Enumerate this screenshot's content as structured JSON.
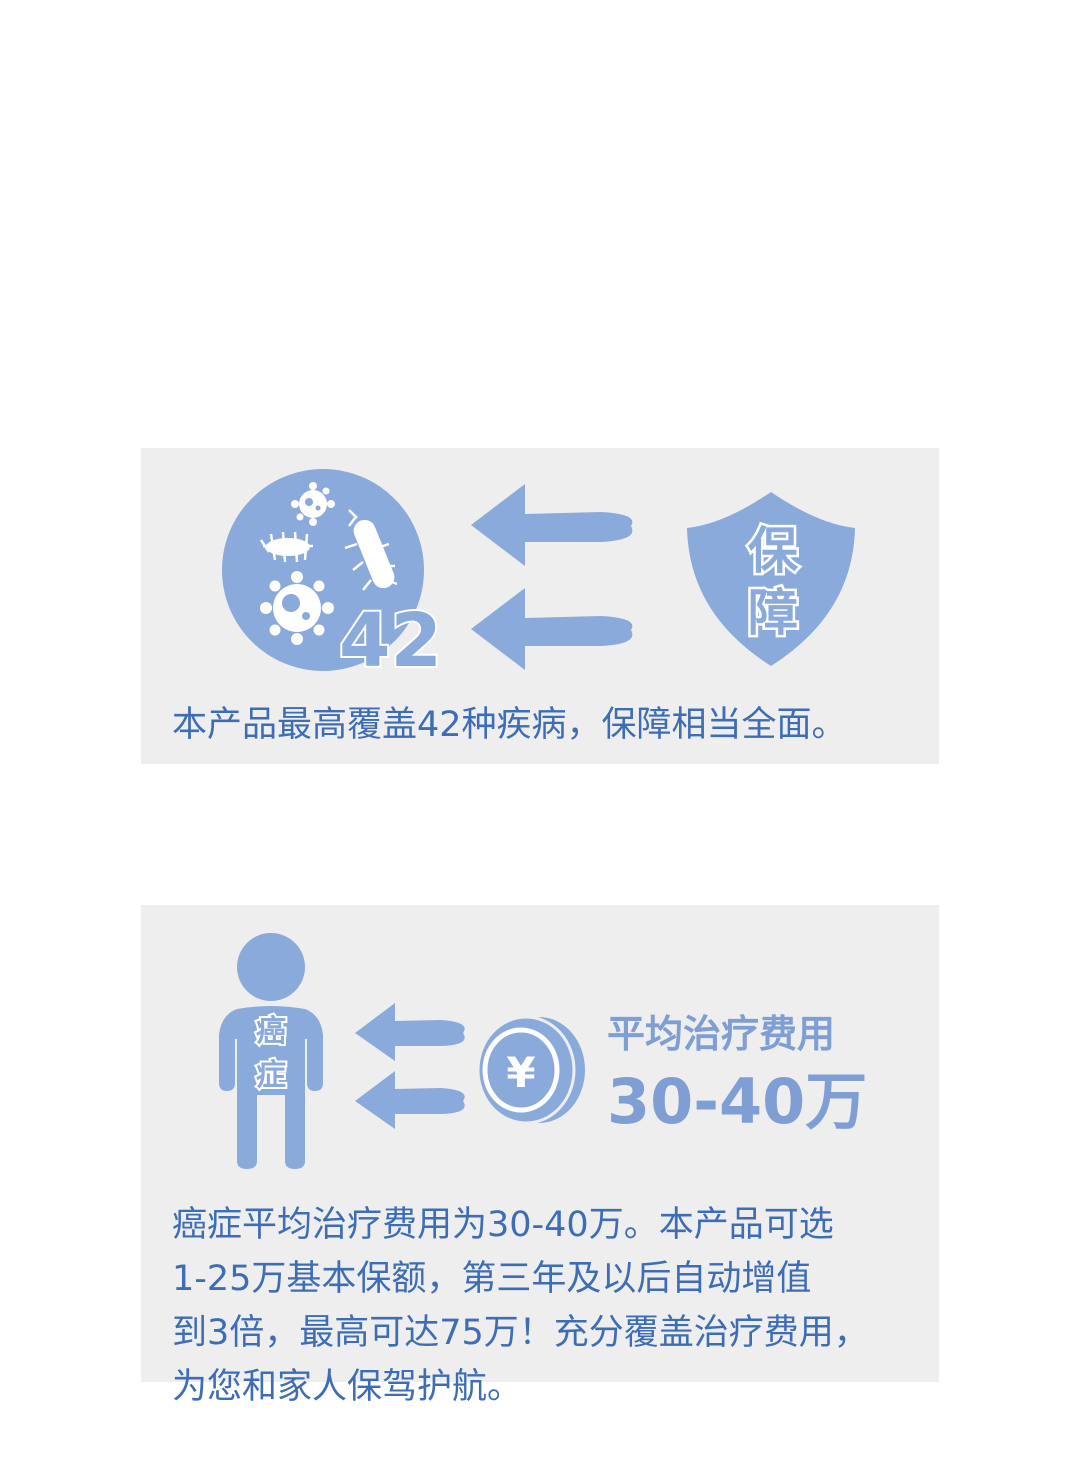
{
  "card1": {
    "disease_count": "42",
    "shield_text": [
      "保",
      "障"
    ],
    "description": "本产品最高覆盖42种疾病，保障相当全面。"
  },
  "card2": {
    "person_text": [
      "癌",
      "症"
    ],
    "coin_symbol": "¥",
    "cost_title": "平均治疗费用",
    "cost_value": "30-40万",
    "description_lines": [
      "癌症平均治疗费用为30-40万。本产品可选",
      "1-25万基本保额，第三年及以后自动增值",
      "到3倍，最高可达75万！充分覆盖治疗费用，",
      "为您和家人保驾护航。"
    ]
  },
  "colors": {
    "card_bg": "#eeeeef",
    "icon_blue": "#8aaadc",
    "icon_dark_blue": "#7f9fd4",
    "text_blue": "#3d6db5",
    "white": "#ffffff"
  },
  "icons": [
    "virus-circle-icon",
    "arrow-left-icon",
    "shield-icon",
    "person-icon",
    "coin-yen-icon"
  ]
}
